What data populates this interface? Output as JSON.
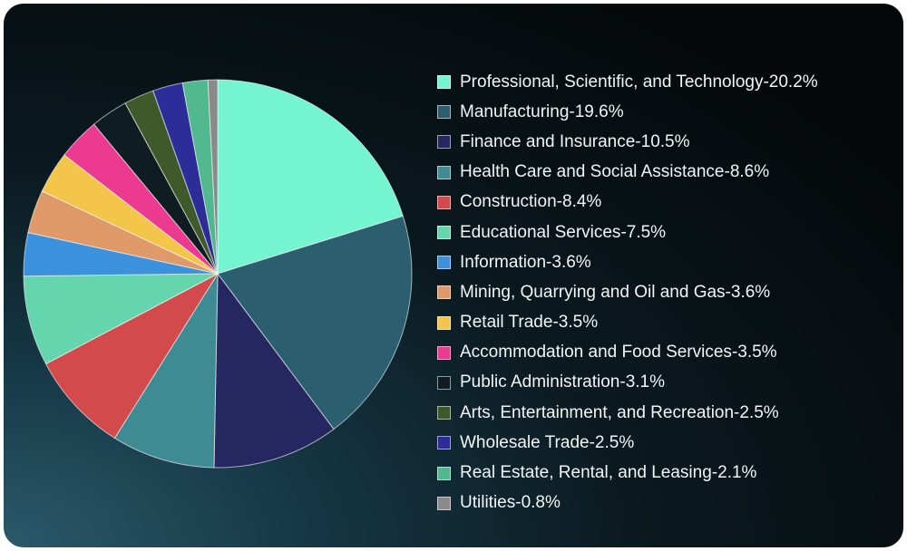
{
  "chart_data": {
    "type": "pie",
    "title": "",
    "start_angle_deg": 0,
    "direction": "clockwise",
    "legend_position": "right",
    "slices": [
      {
        "label": "Professional, Scientific, and Technology",
        "value": 20.2,
        "display": "20.2%",
        "color": "#74f5cf"
      },
      {
        "label": "Manufacturing",
        "value": 19.6,
        "display": "19.6%",
        "color": "#2b5e6e"
      },
      {
        "label": "Finance and Insurance",
        "value": 10.5,
        "display": "10.5%",
        "color": "#262660"
      },
      {
        "label": "Health Care and Social Assistance",
        "value": 8.6,
        "display": "8.6%",
        "color": "#3f8b93"
      },
      {
        "label": "Construction",
        "value": 8.4,
        "display": "8.4%",
        "color": "#d24a4b"
      },
      {
        "label": "Educational Services",
        "value": 7.5,
        "display": "7.5%",
        "color": "#64d5ac"
      },
      {
        "label": "Information",
        "value": 3.6,
        "display": "3.6%",
        "color": "#3b91dc"
      },
      {
        "label": "Mining, Quarrying and Oil and Gas",
        "value": 3.6,
        "display": "3.6%",
        "color": "#e09a6a"
      },
      {
        "label": "Retail Trade",
        "value": 3.5,
        "display": "3.5%",
        "color": "#f3c64a"
      },
      {
        "label": "Accommodation and Food Services",
        "value": 3.5,
        "display": "3.5%",
        "color": "#ec3a91"
      },
      {
        "label": "Public Administration",
        "value": 3.1,
        "display": "3.1%",
        "color": "#0f1d22"
      },
      {
        "label": "Arts, Entertainment, and Recreation",
        "value": 2.5,
        "display": "2.5%",
        "color": "#3e5a2a"
      },
      {
        "label": "Wholesale Trade",
        "value": 2.5,
        "display": "2.5%",
        "color": "#2d2d9a"
      },
      {
        "label": "Real Estate, Rental, and Leasing",
        "value": 2.1,
        "display": "2.1%",
        "color": "#52b88f"
      },
      {
        "label": "Utilities",
        "value": 0.8,
        "display": "0.8%",
        "color": "#8a8a8a"
      }
    ]
  }
}
